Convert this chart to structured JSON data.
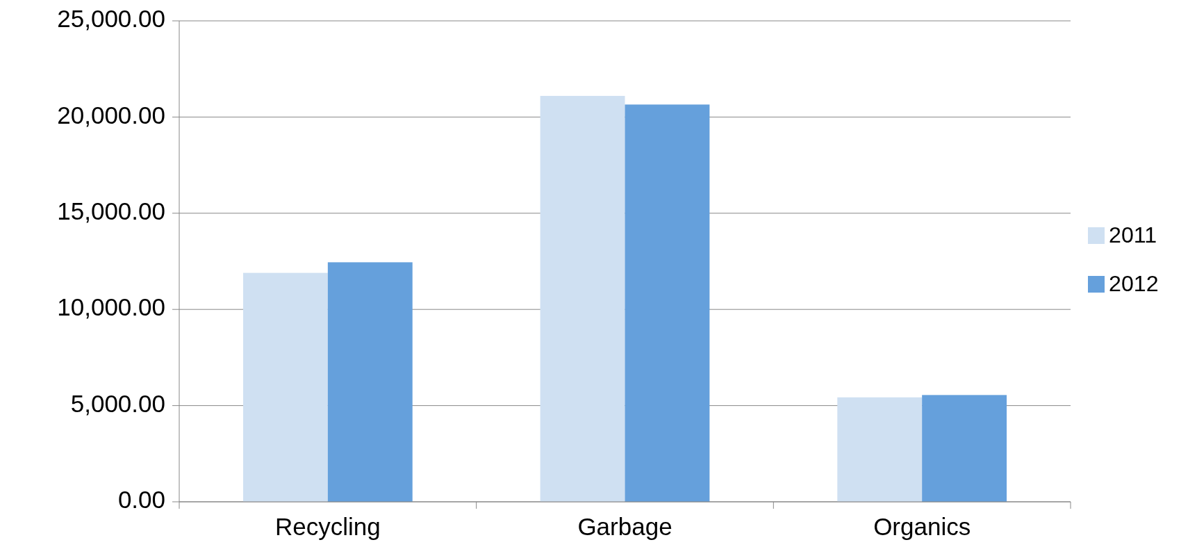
{
  "chart_data": {
    "type": "bar",
    "categories": [
      "Recycling",
      "Garbage",
      "Organics"
    ],
    "series": [
      {
        "name": "2011",
        "color": "#cfe0f2",
        "values": [
          11900,
          21100,
          5430
        ]
      },
      {
        "name": "2012",
        "color": "#65a0dc",
        "values": [
          12450,
          20650,
          5550
        ]
      }
    ],
    "ylim": [
      0,
      25000
    ],
    "yticks": [
      {
        "value": 0,
        "label": "0.00"
      },
      {
        "value": 5000,
        "label": "5,000.00"
      },
      {
        "value": 10000,
        "label": "10,000.00"
      },
      {
        "value": 15000,
        "label": "15,000.00"
      },
      {
        "value": 20000,
        "label": "20,000.00"
      },
      {
        "value": 25000,
        "label": "25,000.00"
      }
    ],
    "grid": "y",
    "legend": "right"
  }
}
